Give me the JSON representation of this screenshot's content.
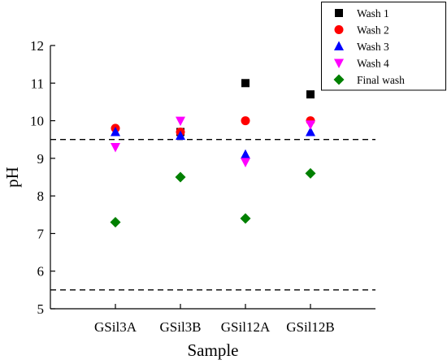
{
  "chart_data": {
    "type": "scatter",
    "xlabel": "Sample",
    "ylabel": "pH",
    "categories": [
      "GSil3A",
      "GSil3B",
      "GSil12A",
      "GSil12B"
    ],
    "ylim": [
      5,
      12
    ],
    "yticks": [
      5,
      6,
      7,
      8,
      9,
      10,
      11,
      12
    ],
    "grid": false,
    "legend_position": "top-right",
    "series": [
      {
        "name": "Wash 1",
        "marker": "square",
        "color": "#000000",
        "values": [
          null,
          9.7,
          11.0,
          10.7
        ]
      },
      {
        "name": "Wash 2",
        "marker": "circle",
        "color": "#ff0000",
        "values": [
          9.8,
          9.7,
          10.0,
          10.0
        ]
      },
      {
        "name": "Wash 3",
        "marker": "triangle-up",
        "color": "#0000ff",
        "values": [
          9.7,
          9.6,
          9.1,
          9.7
        ]
      },
      {
        "name": "Wash 4",
        "marker": "triangle-down",
        "color": "#ff00ff",
        "values": [
          9.3,
          10.0,
          8.9,
          9.9
        ]
      },
      {
        "name": "Final wash",
        "marker": "diamond",
        "color": "#008000",
        "values": [
          7.3,
          8.5,
          7.4,
          8.6
        ]
      }
    ],
    "reference_lines": [
      9.5,
      5.5
    ]
  }
}
